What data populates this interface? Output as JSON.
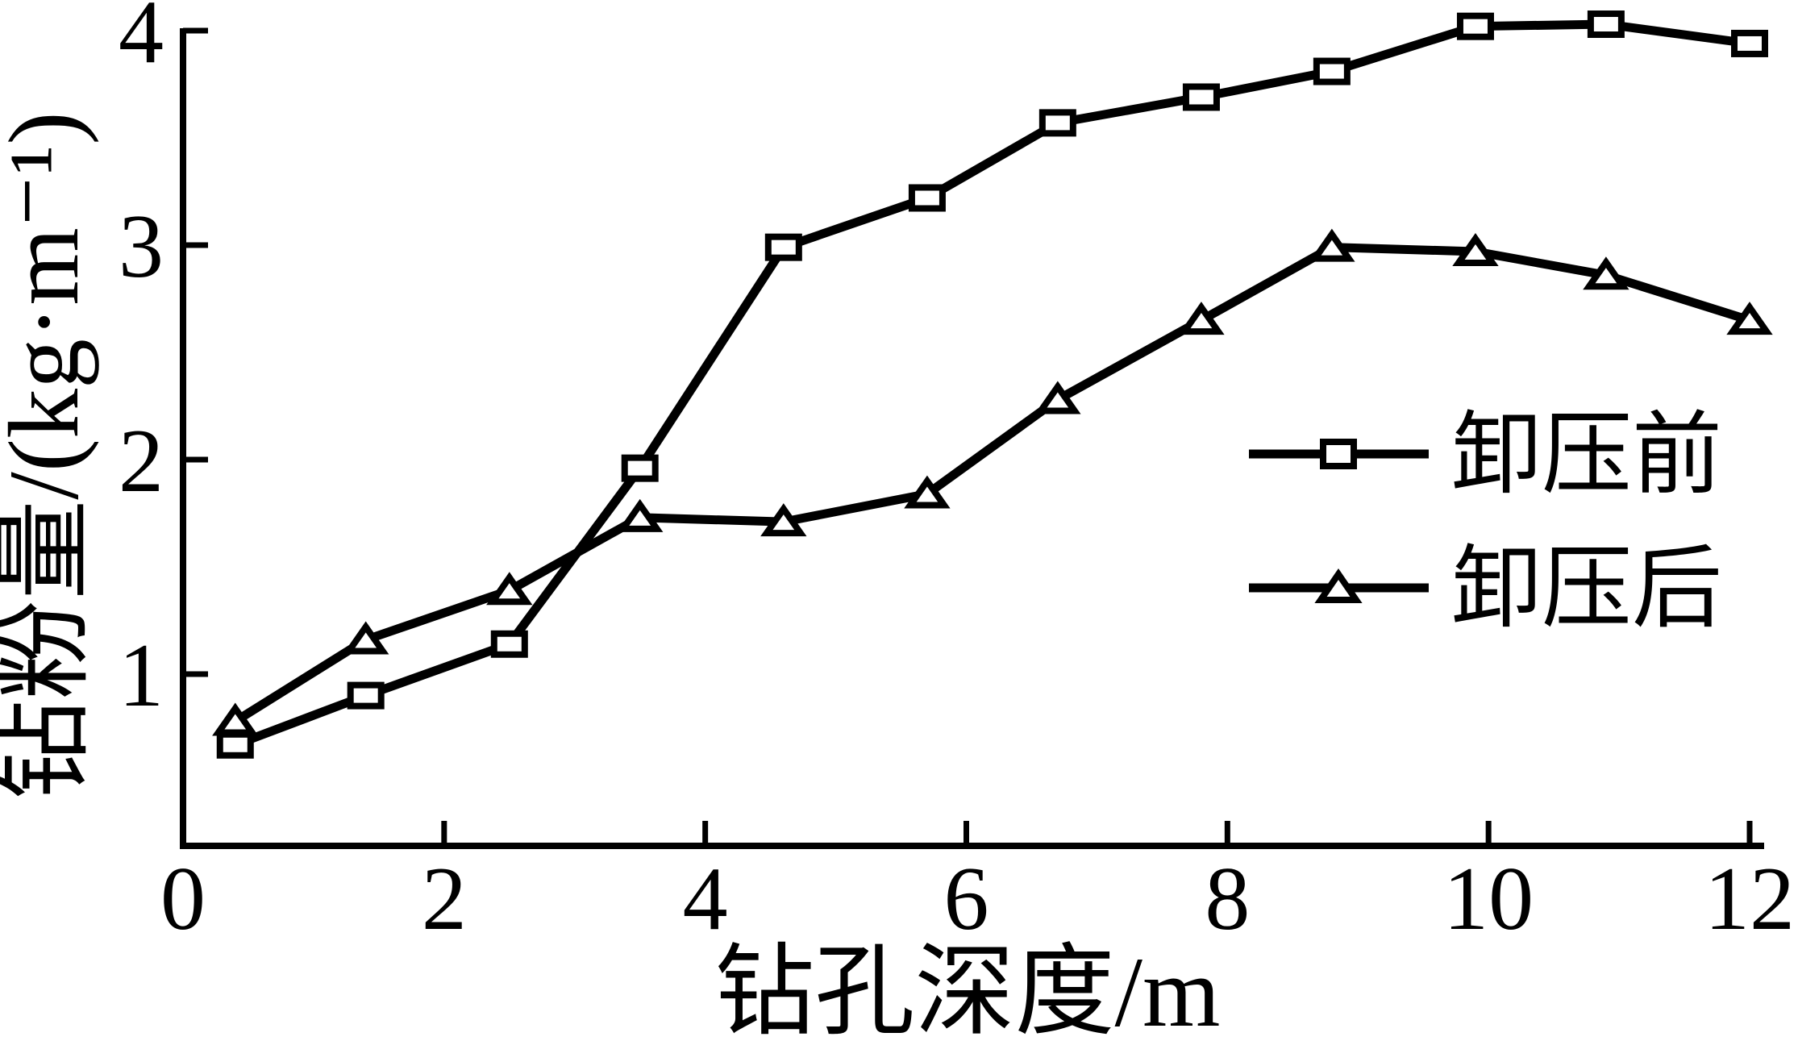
{
  "chart_data": {
    "type": "line",
    "title": "",
    "xlabel": "钻孔深度/m",
    "ylabel": "钻粉量/(kg·m⁻¹)",
    "xlim": [
      0,
      12
    ],
    "ylim": [
      0.2,
      4.01
    ],
    "grid": false,
    "legend_position": "center-right",
    "background_color": "#ffffff",
    "line_color": "#000000",
    "x_tick_values": [
      0,
      2,
      4,
      6,
      8,
      10,
      12
    ],
    "x_tick_labels": [
      "0",
      "2",
      "4",
      "6",
      "8",
      "10",
      "12"
    ],
    "y_tick_values": [
      1,
      2,
      3,
      4
    ],
    "y_tick_labels": [
      "1",
      "2",
      "3",
      "4"
    ],
    "x": [
      0.4,
      1.4,
      2.5,
      3.5,
      4.6,
      5.7,
      6.7,
      7.8,
      8.8,
      9.9,
      10.9,
      12.0
    ],
    "series": [
      {
        "name": "卸压前",
        "marker": "square",
        "values": [
          0.67,
          0.9,
          1.14,
          1.96,
          2.99,
          3.22,
          3.57,
          3.69,
          3.81,
          4.02,
          4.03,
          3.94
        ]
      },
      {
        "name": "卸压后",
        "marker": "triangle",
        "values": [
          0.78,
          1.16,
          1.39,
          1.73,
          1.71,
          1.84,
          2.28,
          2.65,
          2.99,
          2.97,
          2.86,
          2.65
        ]
      }
    ]
  }
}
